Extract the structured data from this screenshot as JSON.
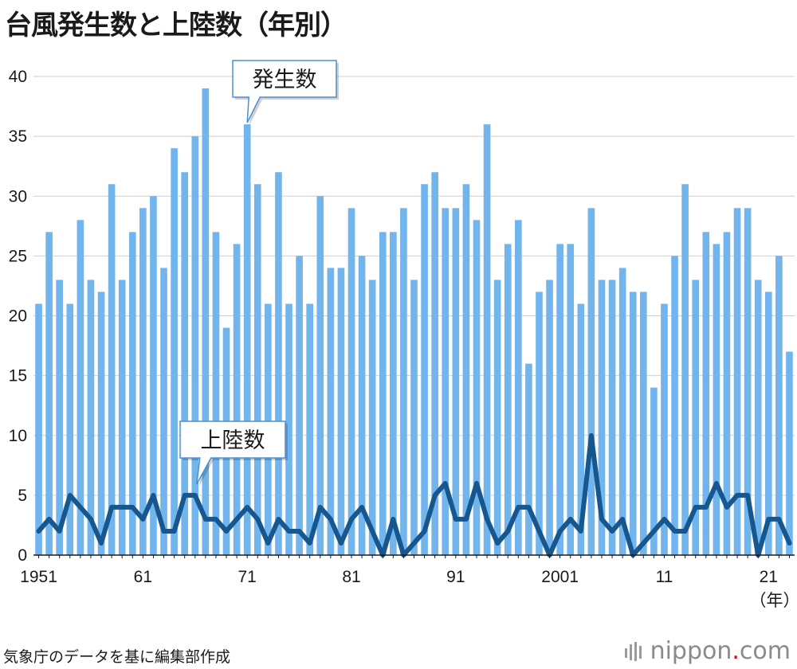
{
  "title": "台風発生数と上陸数（年別）",
  "source": "気象庁のデータを基に編集部作成",
  "brand": {
    "name": "nippon",
    "dot": ".",
    "tld": "com",
    "dot_color": "#e60012"
  },
  "chart_data": {
    "type": "bar",
    "title": "台風発生数と上陸数（年別）",
    "x_unit_label": "（年）",
    "x": [
      1951,
      1952,
      1953,
      1954,
      1955,
      1956,
      1957,
      1958,
      1959,
      1960,
      1961,
      1962,
      1963,
      1964,
      1965,
      1966,
      1967,
      1968,
      1969,
      1970,
      1971,
      1972,
      1973,
      1974,
      1975,
      1976,
      1977,
      1978,
      1979,
      1980,
      1981,
      1982,
      1983,
      1984,
      1985,
      1986,
      1987,
      1988,
      1989,
      1990,
      1991,
      1992,
      1993,
      1994,
      1995,
      1996,
      1997,
      1998,
      1999,
      2000,
      2001,
      2002,
      2003,
      2004,
      2005,
      2006,
      2007,
      2008,
      2009,
      2010,
      2011,
      2012,
      2013,
      2014,
      2015,
      2016,
      2017,
      2018,
      2019,
      2020,
      2021,
      2022,
      2023
    ],
    "x_tick_labels": [
      {
        "year": 1951,
        "label": "1951"
      },
      {
        "year": 1961,
        "label": "61"
      },
      {
        "year": 1971,
        "label": "71"
      },
      {
        "year": 1981,
        "label": "81"
      },
      {
        "year": 1991,
        "label": "91"
      },
      {
        "year": 2001,
        "label": "2001"
      },
      {
        "year": 2011,
        "label": "11"
      },
      {
        "year": 2021,
        "label": "21"
      }
    ],
    "ylim": [
      0,
      40
    ],
    "y_ticks": [
      0,
      5,
      10,
      15,
      20,
      25,
      30,
      35,
      40
    ],
    "grid": true,
    "series": [
      {
        "name": "発生数",
        "type": "bar",
        "color": "#72b5ec",
        "values": [
          21,
          27,
          23,
          21,
          28,
          23,
          22,
          31,
          23,
          27,
          29,
          30,
          24,
          34,
          32,
          35,
          39,
          27,
          19,
          26,
          36,
          31,
          21,
          32,
          21,
          25,
          21,
          30,
          24,
          24,
          29,
          25,
          23,
          27,
          27,
          29,
          23,
          31,
          32,
          29,
          29,
          31,
          28,
          36,
          23,
          26,
          28,
          16,
          22,
          23,
          26,
          26,
          21,
          29,
          23,
          23,
          24,
          22,
          22,
          14,
          21,
          25,
          31,
          23,
          27,
          26,
          27,
          29,
          29,
          23,
          22,
          25,
          17
        ]
      },
      {
        "name": "上陸数",
        "type": "line",
        "color": "#16578f",
        "values": [
          2,
          3,
          2,
          5,
          4,
          3,
          1,
          4,
          4,
          4,
          3,
          5,
          2,
          2,
          5,
          5,
          3,
          3,
          2,
          3,
          4,
          3,
          1,
          3,
          2,
          2,
          1,
          4,
          3,
          1,
          3,
          4,
          2,
          0,
          3,
          0,
          1,
          2,
          5,
          6,
          3,
          3,
          6,
          3,
          1,
          2,
          4,
          4,
          2,
          0,
          2,
          3,
          2,
          10,
          3,
          2,
          3,
          0,
          1,
          2,
          3,
          2,
          2,
          4,
          4,
          6,
          4,
          5,
          5,
          0,
          3,
          3,
          1
        ]
      }
    ]
  }
}
